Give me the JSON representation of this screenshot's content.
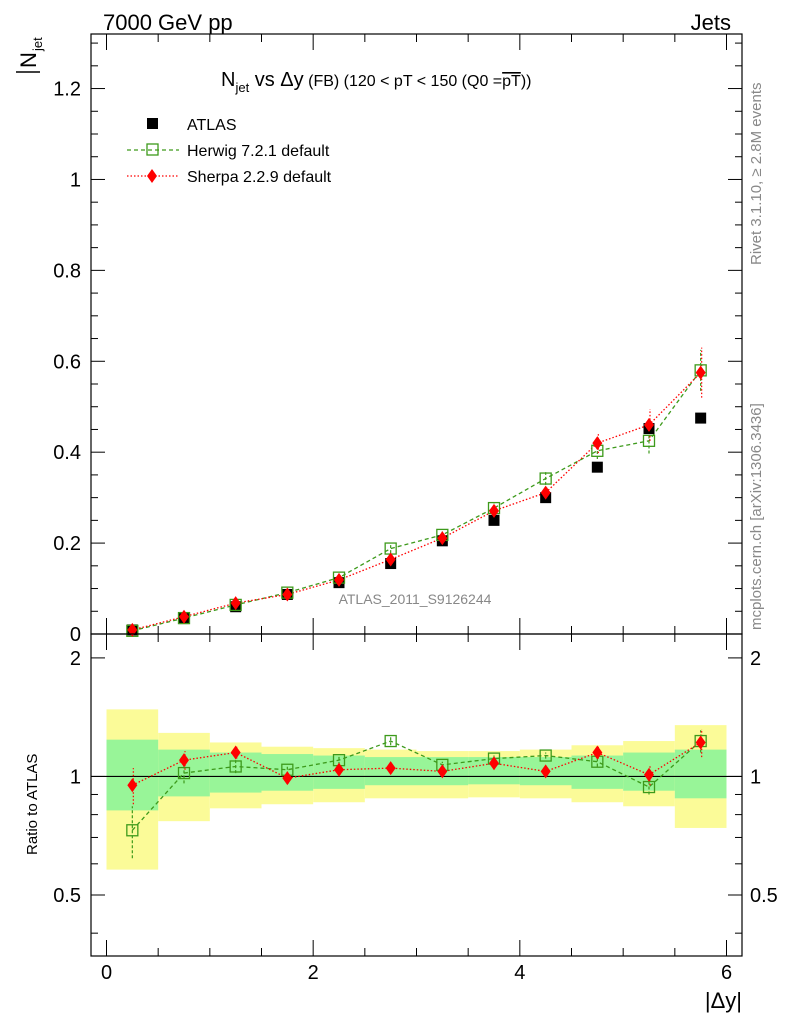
{
  "header": {
    "left": "7000 GeV pp",
    "right": "Jets",
    "title_main": "N",
    "title_sub": "jet",
    "title_rest": " vs Δy",
    "title_fb": " (FB)",
    "title_range": " (120 < pT < 150 (Q0 =",
    "title_pt": "pT",
    "title_close": "))"
  },
  "side": {
    "rivet": "Rivet 3.1.10, ≥ 2.8M events",
    "mcplots": "mcplots.cern.ch [arXiv:1306.3436]"
  },
  "watermark": "ATLAS_2011_S9126244",
  "colors": {
    "atlas": "#000000",
    "herwig": "#3d9a1b",
    "sherpa": "#ff0000",
    "band_inner": "#98f598",
    "band_outer": "#fbfb98"
  },
  "chart_data": [
    {
      "type": "scatter",
      "title": "Njet vs Δy (FB) (120 < pT < 150 (Q0 =pT))",
      "ylabel_main": "N",
      "ylabel_sub": "jet",
      "xlim": [
        -0.15,
        6.15
      ],
      "ylim": [
        0,
        1.32
      ],
      "yticks": [
        0,
        0.2,
        0.4,
        0.6,
        0.8,
        1,
        1.2
      ],
      "ytick_labels": [
        "0",
        "0.2",
        "0.4",
        "0.6",
        "0.8",
        "1",
        "1.2"
      ],
      "x": [
        0.25,
        0.75,
        1.25,
        1.75,
        2.25,
        2.75,
        3.25,
        3.75,
        4.25,
        4.75,
        5.25,
        5.75
      ],
      "x_bins": [
        [
          0,
          0.5
        ],
        [
          0.5,
          1
        ],
        [
          1,
          1.5
        ],
        [
          1.5,
          2
        ],
        [
          2,
          2.5
        ],
        [
          2.5,
          3
        ],
        [
          3,
          3.5
        ],
        [
          3.5,
          4
        ],
        [
          4,
          4.5
        ],
        [
          4.5,
          5
        ],
        [
          5,
          5.5
        ],
        [
          5.5,
          6
        ]
      ],
      "series": [
        {
          "name": "ATLAS",
          "marker": "filled-square",
          "values": [
            0.009,
            0.034,
            0.06,
            0.087,
            0.113,
            0.155,
            0.205,
            0.25,
            0.3,
            0.367,
            0.452,
            0.475
          ]
        },
        {
          "name": "Herwig 7.2.1 default",
          "marker": "open-square",
          "line": "dashed",
          "values": [
            0.007,
            0.035,
            0.064,
            0.091,
            0.124,
            0.188,
            0.218,
            0.277,
            0.342,
            0.403,
            0.425,
            0.58
          ],
          "errors": [
            0.003,
            0.005,
            0.006,
            0.007,
            0.008,
            0.01,
            0.01,
            0.012,
            0.014,
            0.018,
            0.028,
            0.045
          ]
        },
        {
          "name": "Sherpa 2.2.9 default",
          "marker": "diamond",
          "line": "dotted",
          "values": [
            0.009,
            0.038,
            0.068,
            0.087,
            0.119,
            0.164,
            0.211,
            0.271,
            0.311,
            0.42,
            0.46,
            0.575
          ],
          "errors": [
            0.003,
            0.005,
            0.006,
            0.007,
            0.008,
            0.01,
            0.01,
            0.012,
            0.015,
            0.022,
            0.035,
            0.055
          ]
        }
      ]
    },
    {
      "type": "scatter",
      "ylabel": "Ratio to ATLAS",
      "xlabel": "|Δy|",
      "xlim": [
        -0.15,
        6.15
      ],
      "ylim": [
        0.35,
        2.3
      ],
      "log_y": true,
      "yticks": [
        0.5,
        1,
        2
      ],
      "ytick_labels": [
        "0.5",
        "1",
        "2"
      ],
      "xticks": [
        0,
        2,
        4,
        6
      ],
      "xtick_labels": [
        "0",
        "2",
        "4",
        "6"
      ],
      "x": [
        0.25,
        0.75,
        1.25,
        1.75,
        2.25,
        2.75,
        3.25,
        3.75,
        4.25,
        4.75,
        5.25,
        5.75
      ],
      "reference": 1,
      "band_inner": [
        [
          0.82,
          1.24
        ],
        [
          0.89,
          1.17
        ],
        [
          0.91,
          1.15
        ],
        [
          0.92,
          1.14
        ],
        [
          0.93,
          1.13
        ],
        [
          0.95,
          1.12
        ],
        [
          0.95,
          1.12
        ],
        [
          0.955,
          1.12
        ],
        [
          0.95,
          1.12
        ],
        [
          0.93,
          1.13
        ],
        [
          0.92,
          1.15
        ],
        [
          0.88,
          1.17
        ]
      ],
      "band_outer": [
        [
          0.58,
          1.48
        ],
        [
          0.77,
          1.29
        ],
        [
          0.83,
          1.22
        ],
        [
          0.85,
          1.19
        ],
        [
          0.86,
          1.18
        ],
        [
          0.88,
          1.17
        ],
        [
          0.88,
          1.16
        ],
        [
          0.885,
          1.16
        ],
        [
          0.88,
          1.17
        ],
        [
          0.86,
          1.2
        ],
        [
          0.84,
          1.23
        ],
        [
          0.74,
          1.35
        ]
      ],
      "series": [
        {
          "name": "Herwig 7.2.1 default",
          "values": [
            0.73,
            1.02,
            1.06,
            1.04,
            1.1,
            1.23,
            1.07,
            1.11,
            1.13,
            1.09,
            0.94,
            1.23
          ],
          "errors": [
            0.11,
            0.06,
            0.04,
            0.03,
            0.03,
            0.03,
            0.02,
            0.02,
            0.02,
            0.03,
            0.04,
            0.08
          ]
        },
        {
          "name": "Sherpa 2.2.9 default",
          "values": [
            0.95,
            1.1,
            1.15,
            0.99,
            1.04,
            1.05,
            1.03,
            1.08,
            1.03,
            1.15,
            1.01,
            1.22
          ],
          "errors": [
            0.1,
            0.06,
            0.04,
            0.03,
            0.03,
            0.03,
            0.02,
            0.02,
            0.03,
            0.04,
            0.06,
            0.1
          ]
        }
      ]
    }
  ]
}
